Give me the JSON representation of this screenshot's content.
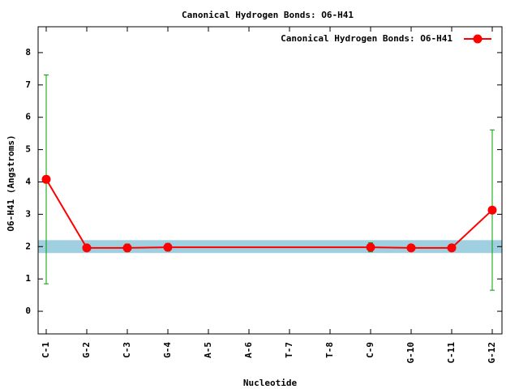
{
  "chart_data": {
    "type": "line",
    "title": "Canonical Hydrogen Bonds: O6-H41",
    "xlabel": "Nucleotide",
    "ylabel": "O6-H41 (Angstroms)",
    "categories": [
      "C-1",
      "G-2",
      "C-3",
      "G-4",
      "A-5",
      "A-6",
      "T-7",
      "T-8",
      "C-9",
      "G-10",
      "C-11",
      "G-12"
    ],
    "series": [
      {
        "name": "Canonical Hydrogen Bonds: O6-H41",
        "color": "#ff0000",
        "error_color": "#00a000",
        "x": [
          "C-1",
          "G-2",
          "C-3",
          "G-4",
          "C-9",
          "G-10",
          "C-11",
          "G-12"
        ],
        "values": [
          4.08,
          1.96,
          1.96,
          1.98,
          1.98,
          1.96,
          1.96,
          3.13
        ],
        "errors": [
          3.23,
          0.1,
          0.12,
          0.12,
          0.14,
          0.1,
          0.1,
          2.48
        ]
      }
    ],
    "band": [
      1.8,
      2.2
    ],
    "band_color": "#a0d0e0",
    "ylim": [
      -0.7,
      8.8
    ],
    "yticks": [
      0,
      1,
      2,
      3,
      4,
      5,
      6,
      7,
      8
    ],
    "legend": "top-right"
  }
}
